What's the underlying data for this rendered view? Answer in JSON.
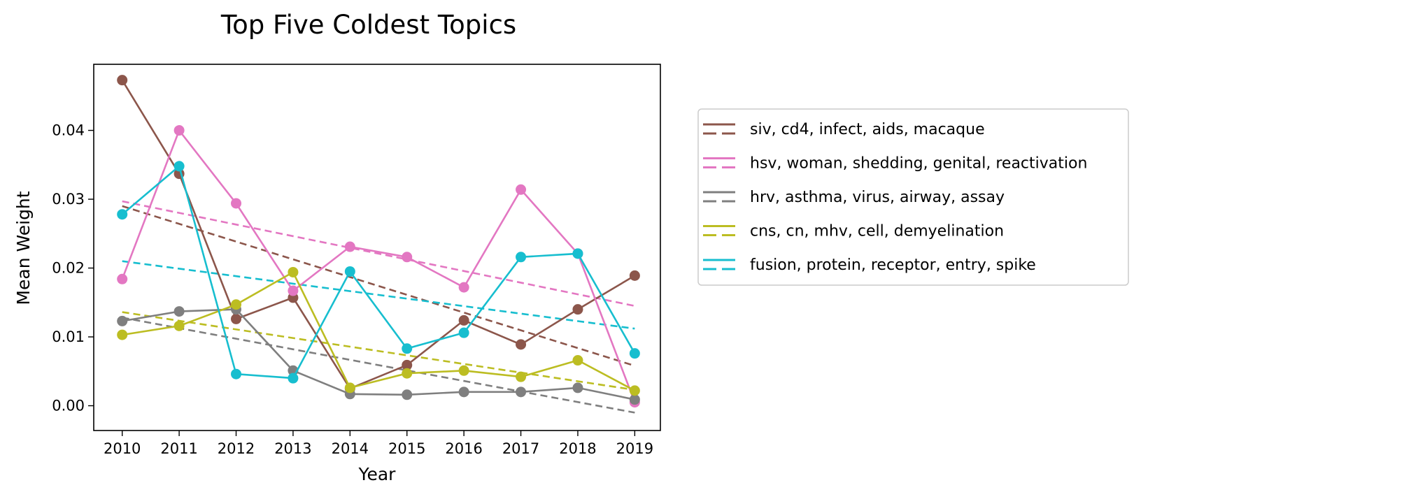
{
  "chart_data": {
    "type": "line",
    "title": "Top Five Coldest Topics",
    "xlabel": "Year",
    "ylabel": "Mean Weight",
    "x": [
      2010,
      2011,
      2012,
      2013,
      2014,
      2015,
      2016,
      2017,
      2018,
      2019
    ],
    "x_ticks": [
      "2010",
      "2011",
      "2012",
      "2013",
      "2014",
      "2015",
      "2016",
      "2017",
      "2018",
      "2019"
    ],
    "xlim": [
      2009.5,
      2019.45
    ],
    "ylim": [
      -0.0036,
      0.0496
    ],
    "y_ticks": [
      0.0,
      0.01,
      0.02,
      0.03,
      0.04
    ],
    "y_tick_labels": [
      "0.00",
      "0.01",
      "0.02",
      "0.03",
      "0.04"
    ],
    "grid": false,
    "legend_position": "outside right",
    "series": [
      {
        "name": "siv, cd4, infect, aids, macaque",
        "color": "#8c564b",
        "values": [
          0.0473,
          0.0337,
          0.0126,
          0.0157,
          0.0025,
          0.0059,
          0.0124,
          0.0089,
          0.014,
          0.0189
        ],
        "trend": [
          0.029,
          0.0058
        ]
      },
      {
        "name": "hsv, woman, shedding, genital, reactivation",
        "color": "#e377c2",
        "values": [
          0.0184,
          0.04,
          0.0294,
          0.0167,
          0.0231,
          0.0216,
          0.0172,
          0.0314,
          0.0221,
          0.0005
        ],
        "trend": [
          0.0297,
          0.0145
        ]
      },
      {
        "name": "hrv, asthma, virus, airway, assay",
        "color": "#7f7f7f",
        "values": [
          0.0123,
          0.0137,
          0.014,
          0.0051,
          0.0017,
          0.0016,
          0.002,
          0.002,
          0.0026,
          0.0009
        ],
        "trend": [
          0.0128,
          -0.001
        ]
      },
      {
        "name": "cns, cn, mhv, cell, demyelination",
        "color": "#bcbd22",
        "values": [
          0.0103,
          0.0116,
          0.0147,
          0.0194,
          0.0026,
          0.0047,
          0.0051,
          0.0042,
          0.0066,
          0.0022
        ],
        "trend": [
          0.0136,
          0.0023
        ]
      },
      {
        "name": "fusion, protein, receptor, entry, spike",
        "color": "#17becf",
        "values": [
          0.0278,
          0.0348,
          0.0046,
          0.004,
          0.0195,
          0.0083,
          0.0106,
          0.0216,
          0.0221,
          0.0076
        ],
        "trend": [
          0.021,
          0.0112
        ]
      }
    ]
  }
}
